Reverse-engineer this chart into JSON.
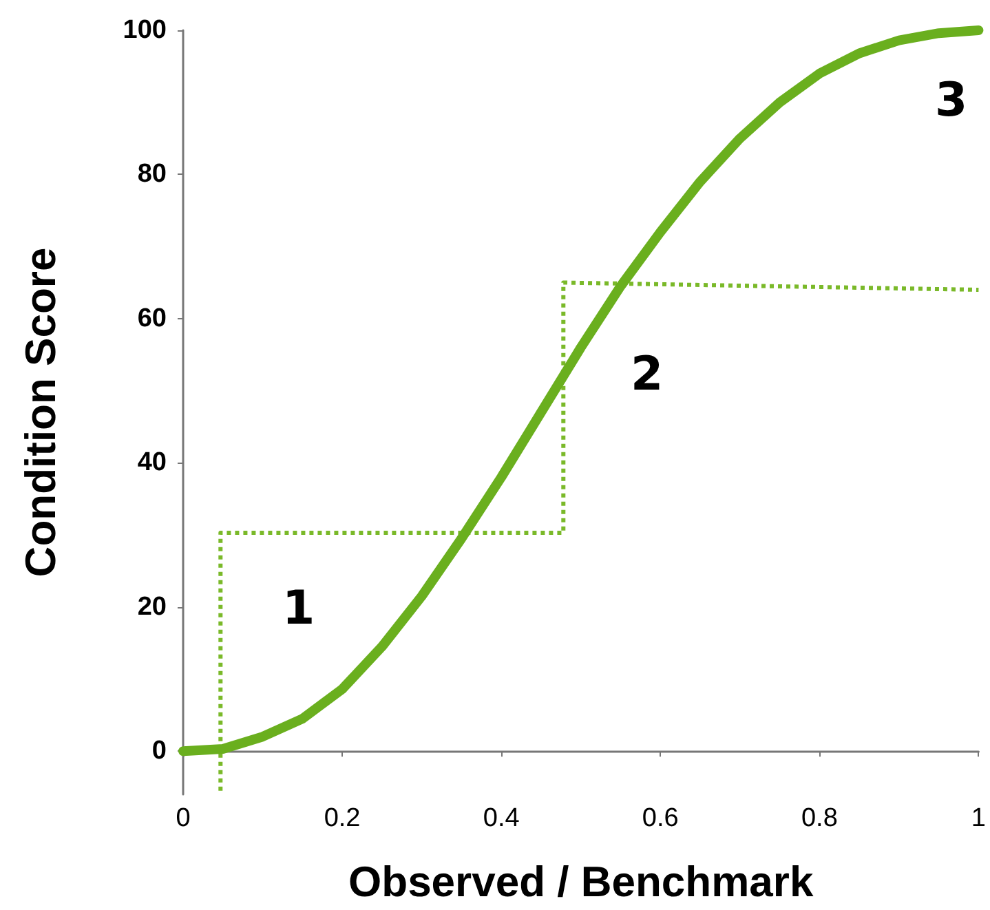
{
  "chart_data": {
    "type": "line",
    "xlabel": "Observed / Benchmark",
    "ylabel": "Condition Score",
    "xlim": [
      0,
      1
    ],
    "xticks": [
      0,
      {
        "value": 0.2,
        "label": "0.2"
      },
      {
        "value": 0.4,
        "label": "0.4"
      },
      {
        "value": 0.6,
        "label": "0.6"
      },
      {
        "value": 0.8,
        "label": "0.8"
      },
      1
    ],
    "ylim": [
      -6,
      100
    ],
    "yticks": [
      0,
      20,
      40,
      60,
      80,
      100
    ],
    "grid": false,
    "marker": "none",
    "series": [
      {
        "color": "#6aaf1e",
        "line_style": "solid",
        "x": [
          0,
          0.05,
          0.1,
          0.15,
          0.2,
          0.25,
          0.3,
          0.35,
          0.4,
          0.45,
          0.5,
          0.55,
          0.6,
          0.65,
          0.7,
          0.75,
          0.8,
          0.85,
          0.9,
          0.95,
          1
        ],
        "values": [
          0,
          0.3,
          2,
          4.5,
          8.6,
          14.5,
          21.5,
          29.5,
          38,
          47,
          56,
          64.5,
          72,
          79,
          85,
          90,
          94,
          96.8,
          98.6,
          99.6,
          100
        ]
      },
      {
        "color": "#7ab929",
        "line_style": "dotted",
        "x": [
          0.047,
          0.047,
          0.478,
          0.478,
          1
        ],
        "values": [
          -5.5,
          30.3,
          30.3,
          65,
          64
        ]
      }
    ],
    "annotations": [
      "1",
      "2",
      "3"
    ]
  }
}
